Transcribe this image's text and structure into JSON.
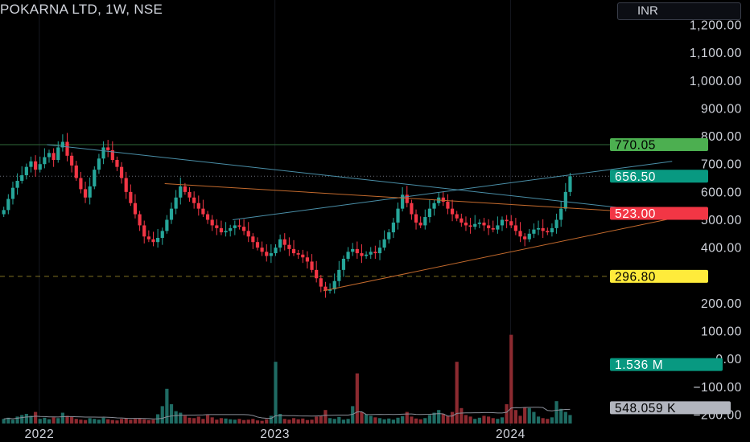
{
  "header": {
    "symbol_title": "POKARNA LTD, 1W, NSE",
    "currency": "INR"
  },
  "colors": {
    "background": "#000000",
    "up": "#26a69a",
    "down": "#f23645",
    "volume_up": "#1f6b63",
    "volume_down": "#8c2a30",
    "green_badge": "#4caf50",
    "teal_badge": "#089981",
    "red_badge": "#f23645",
    "yellow_badge": "#ffeb3b",
    "grey_badge": "#b2b5be",
    "trend_blue": "#4a8fa8",
    "trend_orange": "#c36a2d"
  },
  "chart_data": {
    "type": "candlestick",
    "interval": "1W",
    "price_axis": {
      "min": -200,
      "max": 1200,
      "ticks": [
        {
          "value": 1200,
          "label": "1,200.00"
        },
        {
          "value": 1100,
          "label": "1,100.00"
        },
        {
          "value": 1000,
          "label": "1,000.00"
        },
        {
          "value": 900,
          "label": "900.00"
        },
        {
          "value": 800,
          "label": "800.00"
        },
        {
          "value": 700,
          "label": "700.00"
        },
        {
          "value": 600,
          "label": "600.00"
        },
        {
          "value": 500,
          "label": "500.00"
        },
        {
          "value": 400,
          "label": "400.00"
        },
        {
          "value": 200,
          "label": "200.00"
        },
        {
          "value": 100,
          "label": "100.00"
        },
        {
          "value": 0,
          "label": "0.00"
        },
        {
          "value": -100,
          "label": "−100.00"
        },
        {
          "value": -200,
          "label": "−200.00"
        }
      ]
    },
    "time_axis": {
      "labels": [
        {
          "label": "2022",
          "week": 3
        },
        {
          "label": "2023",
          "week": 55
        },
        {
          "label": "2024",
          "week": 107
        }
      ]
    },
    "price_labels": [
      {
        "label": "770.05",
        "value": 770.05,
        "style": "green"
      },
      {
        "label": "656.50",
        "value": 656.5,
        "style": "teal"
      },
      {
        "label": "523.00",
        "value": 523.0,
        "style": "red"
      },
      {
        "label": "296.80",
        "value": 296.8,
        "style": "yellow"
      }
    ],
    "volume_labels": [
      {
        "label": "1.536 M",
        "value": -20,
        "style": "teal"
      },
      {
        "label": "548.059 K",
        "value": -175,
        "style": "grey"
      }
    ],
    "horizontal_lines": [
      {
        "value": 770.05,
        "style": "solid-green"
      },
      {
        "value": 656.5,
        "style": "dotted"
      },
      {
        "value": 296.8,
        "style": "dashed-yellow"
      }
    ],
    "trend_lines": [
      {
        "from": [
          10,
          770
        ],
        "to": [
          148,
          523
        ],
        "color": "blue"
      },
      {
        "from": [
          51,
          500
        ],
        "to": [
          148,
          710
        ],
        "color": "blue"
      },
      {
        "from": [
          36,
          630
        ],
        "to": [
          148,
          520
        ],
        "color": "orange"
      },
      {
        "from": [
          71,
          245
        ],
        "to": [
          148,
          505
        ],
        "color": "orange"
      }
    ],
    "closes": [
      535,
      575,
      615,
      640,
      660,
      690,
      710,
      680,
      700,
      725,
      740,
      715,
      760,
      780,
      730,
      695,
      650,
      610,
      580,
      620,
      680,
      720,
      760,
      750,
      715,
      690,
      650,
      600,
      560,
      520,
      480,
      440,
      430,
      420,
      435,
      460,
      500,
      540,
      580,
      620,
      600,
      580,
      560,
      540,
      520,
      500,
      480,
      470,
      455,
      460,
      470,
      480,
      475,
      460,
      440,
      420,
      400,
      385,
      370,
      380,
      400,
      430,
      410,
      395,
      380,
      375,
      365,
      350,
      320,
      290,
      260,
      245,
      250,
      280,
      320,
      360,
      385,
      395,
      380,
      370,
      375,
      385,
      380,
      400,
      430,
      455,
      490,
      540,
      590,
      560,
      520,
      490,
      480,
      510,
      540,
      560,
      580,
      565,
      540,
      520,
      505,
      490,
      480,
      475,
      485,
      490,
      480,
      470,
      465,
      480,
      500,
      495,
      480,
      460,
      440,
      430,
      450,
      465,
      470,
      460,
      455,
      470,
      500,
      540,
      600,
      656.5
    ],
    "volume_millions": [
      0.12,
      0.15,
      0.1,
      0.18,
      0.22,
      0.25,
      0.2,
      0.3,
      0.12,
      0.15,
      0.11,
      0.16,
      0.14,
      0.28,
      0.2,
      0.18,
      0.12,
      0.1,
      0.09,
      0.14,
      0.12,
      0.1,
      0.15,
      0.11,
      0.09,
      0.08,
      0.12,
      0.14,
      0.1,
      0.12,
      0.13,
      0.11,
      0.09,
      0.1,
      0.24,
      0.45,
      0.9,
      0.5,
      0.32,
      0.28,
      0.2,
      0.15,
      0.14,
      0.18,
      0.12,
      0.22,
      0.16,
      0.1,
      0.14,
      0.13,
      0.11,
      0.1,
      0.12,
      0.09,
      0.1,
      0.12,
      0.08,
      0.07,
      0.11,
      0.2,
      1.6,
      0.25,
      0.12,
      0.1,
      0.14,
      0.11,
      0.13,
      0.09,
      0.1,
      0.18,
      0.2,
      0.35,
      0.14,
      0.12,
      0.17,
      0.1,
      0.12,
      0.45,
      1.3,
      0.3,
      0.24,
      0.2,
      0.16,
      0.14,
      0.11,
      0.13,
      0.1,
      0.15,
      0.19,
      0.3,
      0.18,
      0.13,
      0.11,
      0.14,
      0.22,
      0.28,
      0.35,
      0.25,
      0.2,
      0.3,
      1.6,
      0.4,
      0.22,
      0.18,
      0.12,
      0.15,
      0.2,
      0.18,
      0.14,
      0.12,
      0.16,
      0.5,
      2.3,
      0.35,
      0.2,
      0.42,
      0.4,
      0.3,
      0.18,
      0.14,
      0.12,
      0.16,
      0.58,
      0.38,
      0.3,
      0.22
    ]
  }
}
